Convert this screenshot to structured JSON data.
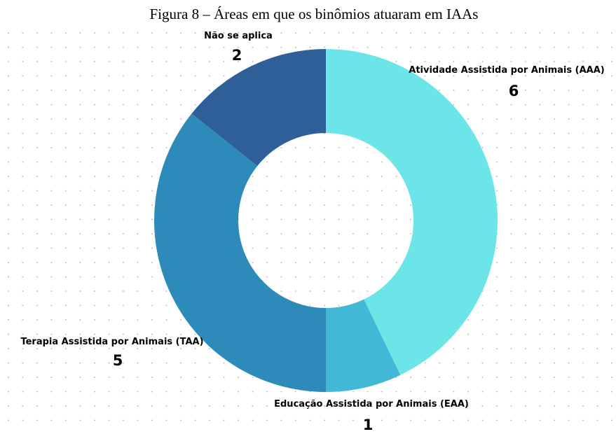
{
  "chart_data": {
    "type": "donut",
    "title": "Figura 8 – Áreas em que os binômios atuaram em IAAs",
    "categories": [
      "Atividade Assistida por Animais (AAA)",
      "Educação Assistida por Animais (EAA)",
      "Terapia Assistida por Animais (TAA)",
      "Não se aplica"
    ],
    "values": [
      6,
      1,
      5,
      2
    ],
    "colors": [
      "#6ce5e8",
      "#41b8d5",
      "#2d8bba",
      "#2f5f98"
    ]
  }
}
